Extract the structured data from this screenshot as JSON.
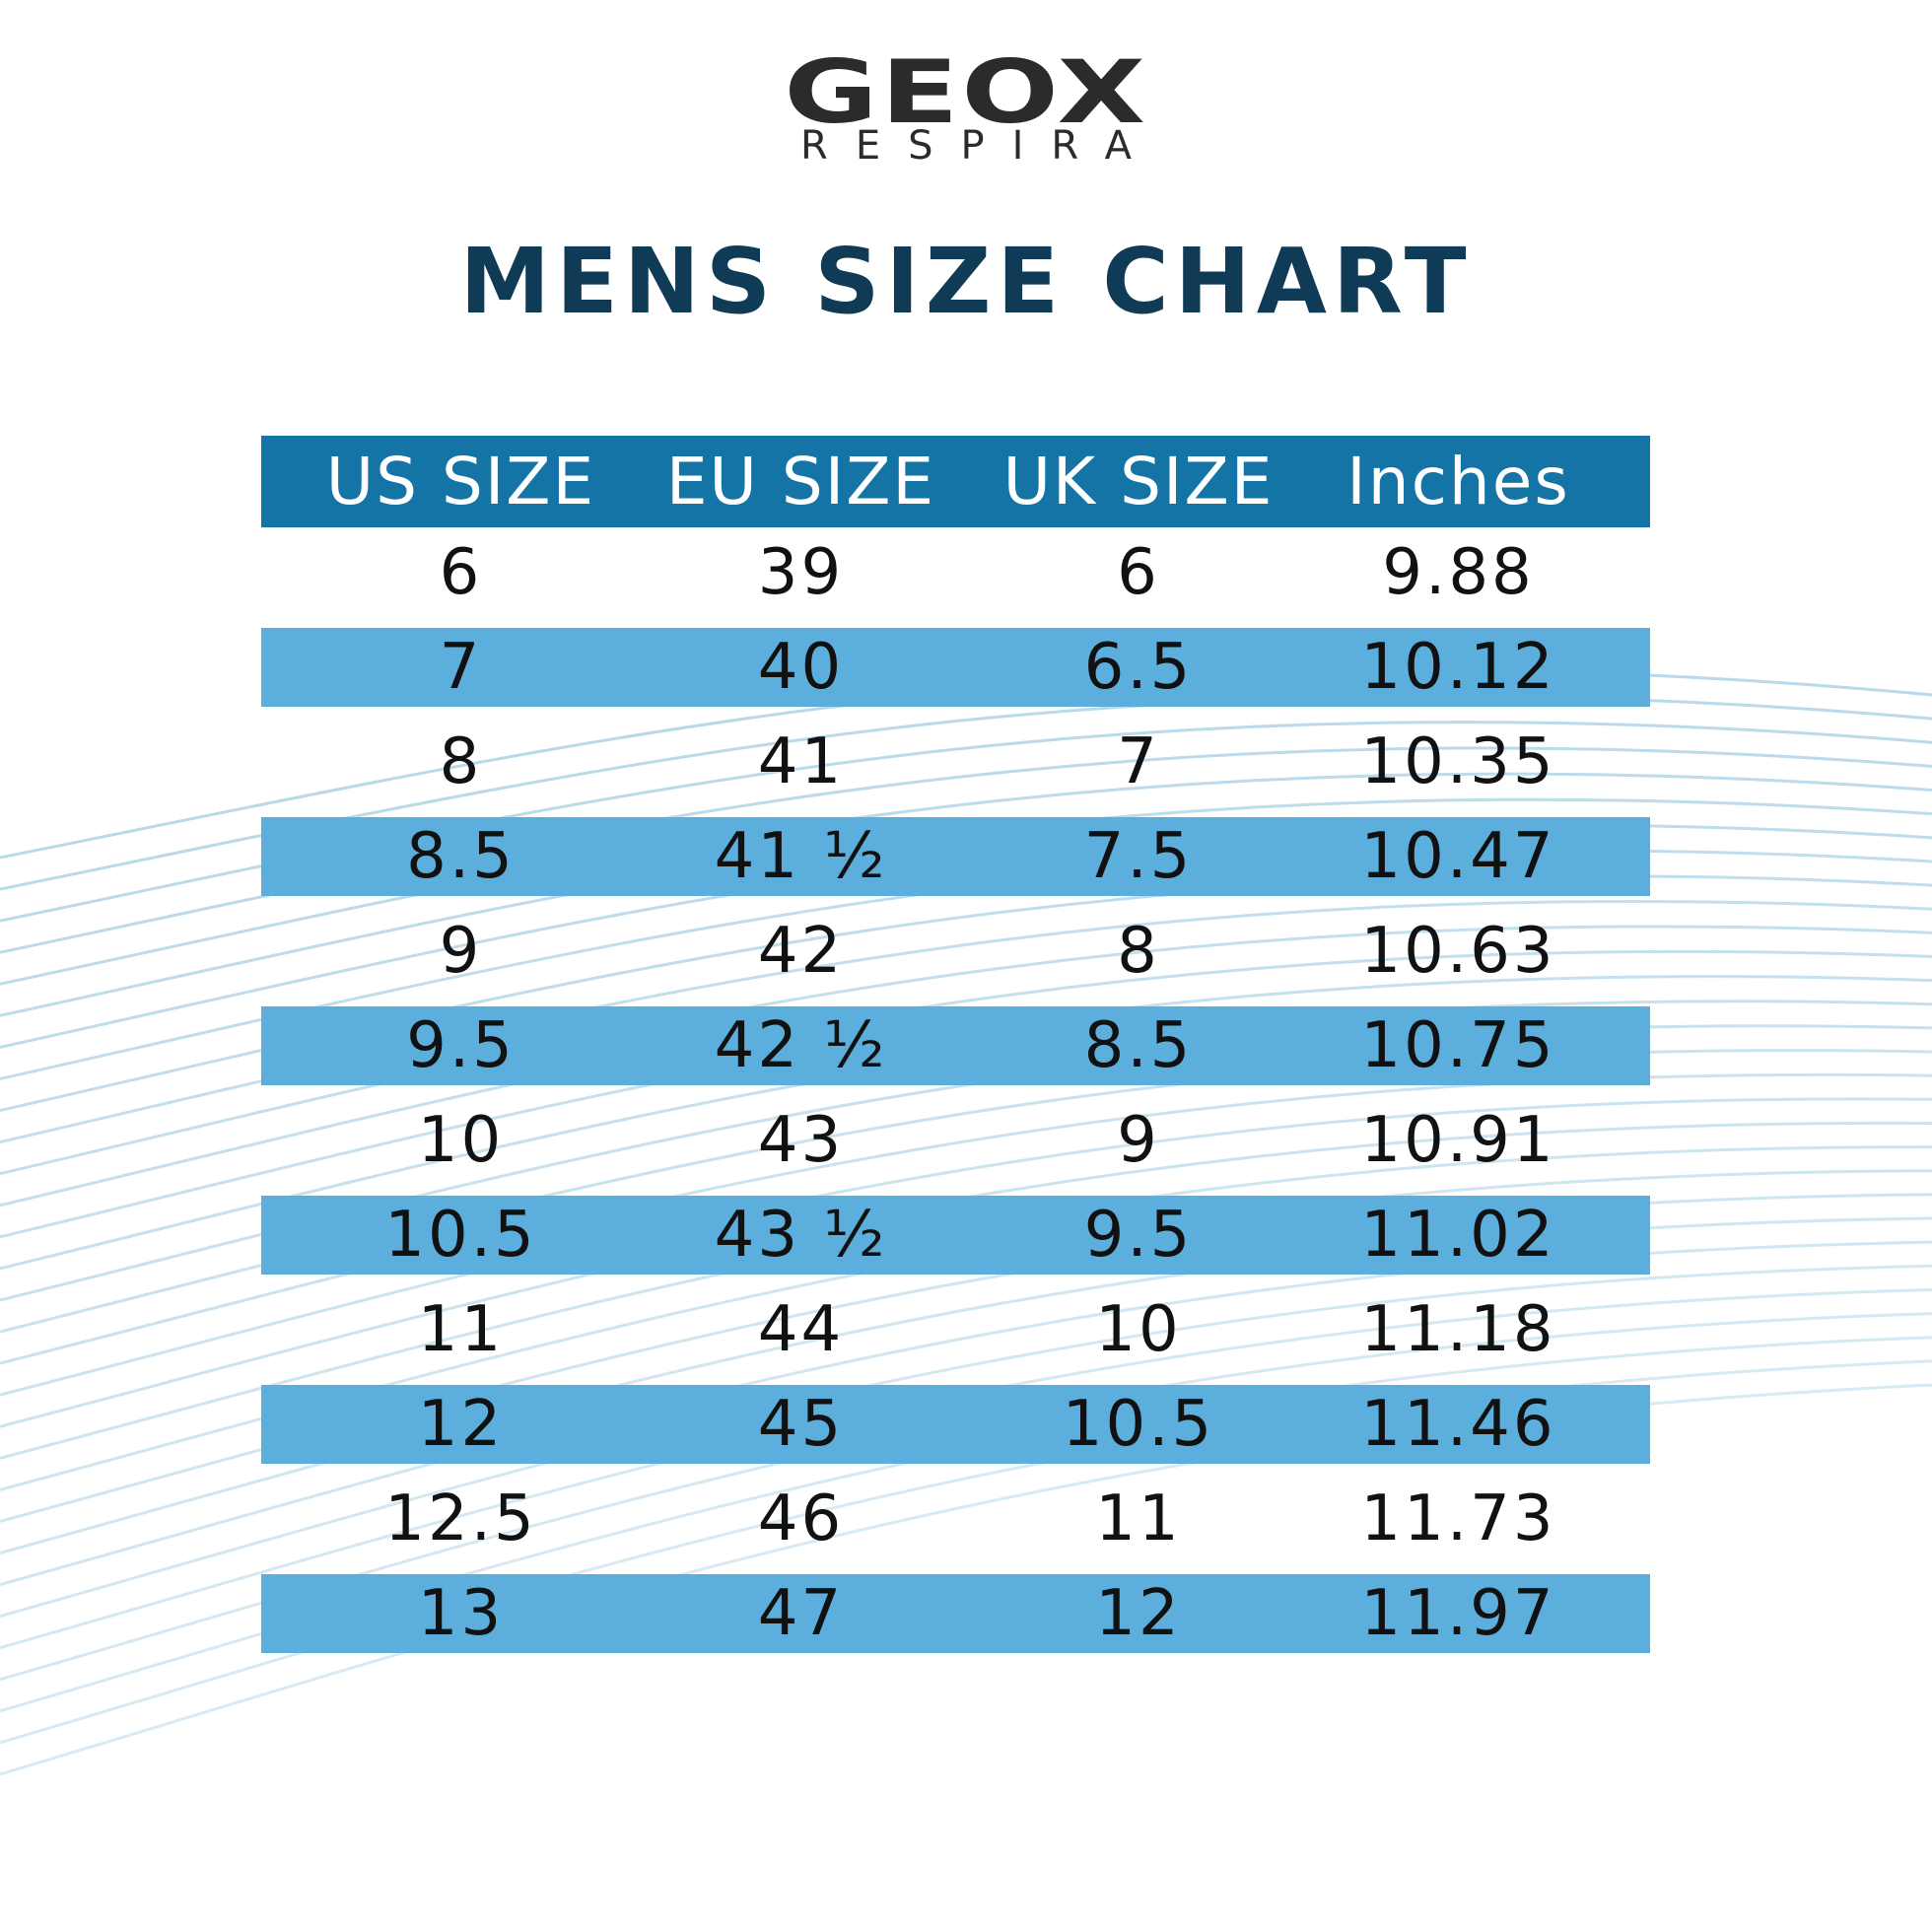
{
  "brand": {
    "name": "GEOX",
    "tagline": "RESPIRA"
  },
  "title": "MENS SIZE CHART",
  "colors": {
    "title": "#0f3b57",
    "header_bg": "#1474a6",
    "row_shade": "#5caedc",
    "waves": "#7fb9d6"
  },
  "table": {
    "headers": [
      "US SIZE",
      "EU SIZE",
      "UK SIZE",
      "Inches"
    ],
    "rows": [
      [
        "6",
        "39",
        "6",
        "9.88"
      ],
      [
        "7",
        "40",
        "6.5",
        "10.12"
      ],
      [
        "8",
        "41",
        "7",
        "10.35"
      ],
      [
        "8.5",
        "41 ½",
        "7.5",
        "10.47"
      ],
      [
        "9",
        "42",
        "8",
        "10.63"
      ],
      [
        "9.5",
        "42 ½",
        "8.5",
        "10.75"
      ],
      [
        "10",
        "43",
        "9",
        "10.91"
      ],
      [
        "10.5",
        "43 ½",
        "9.5",
        "11.02"
      ],
      [
        "11",
        "44",
        "10",
        "11.18"
      ],
      [
        "12",
        "45",
        "10.5",
        "11.46"
      ],
      [
        "12.5",
        "46",
        "11",
        "11.73"
      ],
      [
        "13",
        "47",
        "12",
        "11.97"
      ]
    ]
  }
}
